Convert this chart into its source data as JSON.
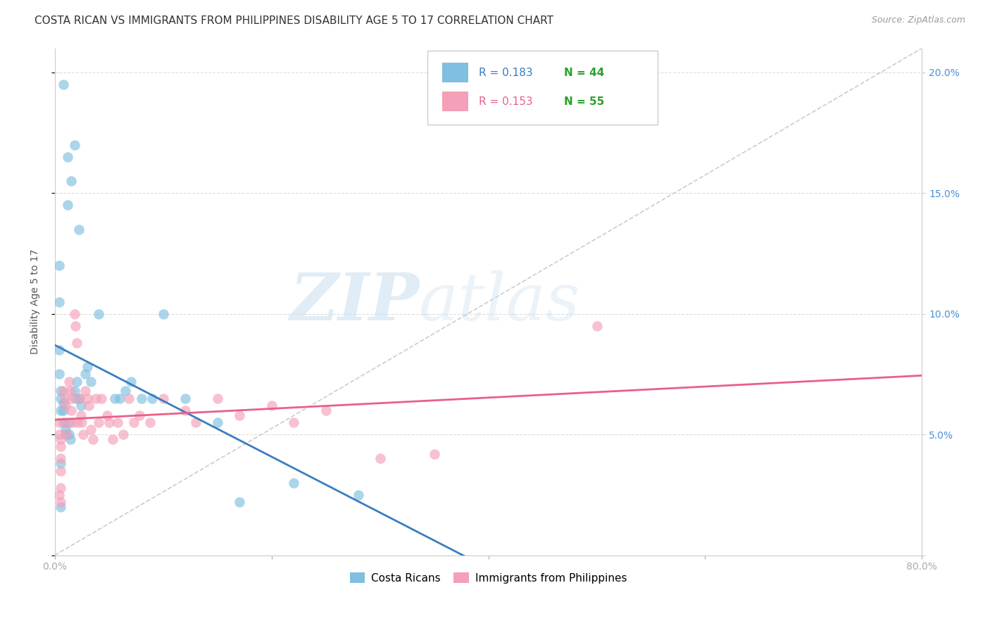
{
  "title": "COSTA RICAN VS IMMIGRANTS FROM PHILIPPINES DISABILITY AGE 5 TO 17 CORRELATION CHART",
  "source": "Source: ZipAtlas.com",
  "ylabel": "Disability Age 5 to 17",
  "xlim": [
    0.0,
    0.8
  ],
  "ylim": [
    0.0,
    0.21
  ],
  "xticks": [
    0.0,
    0.2,
    0.4,
    0.6,
    0.8
  ],
  "xtick_labels": [
    "0.0%",
    "",
    "",
    "",
    "80.0%"
  ],
  "yticks": [
    0.0,
    0.05,
    0.1,
    0.15,
    0.2
  ],
  "legend_blue_R": "0.183",
  "legend_blue_N": "44",
  "legend_pink_R": "0.153",
  "legend_pink_N": "55",
  "blue_scatter_color": "#7fbfdf",
  "pink_scatter_color": "#f4a0b8",
  "blue_line_color": "#3a7dbf",
  "pink_line_color": "#e8608a",
  "diagonal_color": "#cccccc",
  "watermark_zip": "ZIP",
  "watermark_atlas": "atlas",
  "blue_scatter_x": [
    0.008,
    0.012,
    0.018,
    0.015,
    0.022,
    0.012,
    0.004,
    0.004,
    0.004,
    0.004,
    0.005,
    0.005,
    0.005,
    0.008,
    0.008,
    0.008,
    0.01,
    0.01,
    0.013,
    0.013,
    0.014,
    0.018,
    0.019,
    0.02,
    0.022,
    0.024,
    0.028,
    0.03,
    0.033,
    0.04,
    0.055,
    0.06,
    0.065,
    0.07,
    0.08,
    0.09,
    0.1,
    0.12,
    0.15,
    0.17,
    0.22,
    0.28,
    0.005,
    0.005
  ],
  "blue_scatter_y": [
    0.195,
    0.165,
    0.17,
    0.155,
    0.135,
    0.145,
    0.12,
    0.105,
    0.085,
    0.075,
    0.068,
    0.065,
    0.06,
    0.063,
    0.06,
    0.055,
    0.052,
    0.05,
    0.055,
    0.05,
    0.048,
    0.068,
    0.065,
    0.072,
    0.065,
    0.062,
    0.075,
    0.078,
    0.072,
    0.1,
    0.065,
    0.065,
    0.068,
    0.072,
    0.065,
    0.065,
    0.1,
    0.065,
    0.055,
    0.022,
    0.03,
    0.025,
    0.038,
    0.02
  ],
  "pink_scatter_x": [
    0.004,
    0.004,
    0.005,
    0.005,
    0.005,
    0.008,
    0.009,
    0.01,
    0.01,
    0.011,
    0.013,
    0.014,
    0.015,
    0.015,
    0.016,
    0.018,
    0.019,
    0.02,
    0.021,
    0.023,
    0.024,
    0.025,
    0.026,
    0.028,
    0.03,
    0.031,
    0.033,
    0.035,
    0.038,
    0.04,
    0.043,
    0.048,
    0.05,
    0.053,
    0.058,
    0.063,
    0.068,
    0.073,
    0.078,
    0.088,
    0.1,
    0.12,
    0.13,
    0.15,
    0.17,
    0.2,
    0.22,
    0.25,
    0.3,
    0.35,
    0.004,
    0.005,
    0.005,
    0.5,
    0.005
  ],
  "pink_scatter_y": [
    0.055,
    0.05,
    0.048,
    0.045,
    0.04,
    0.068,
    0.065,
    0.062,
    0.055,
    0.05,
    0.072,
    0.068,
    0.065,
    0.06,
    0.055,
    0.1,
    0.095,
    0.088,
    0.055,
    0.065,
    0.058,
    0.055,
    0.05,
    0.068,
    0.065,
    0.062,
    0.052,
    0.048,
    0.065,
    0.055,
    0.065,
    0.058,
    0.055,
    0.048,
    0.055,
    0.05,
    0.065,
    0.055,
    0.058,
    0.055,
    0.065,
    0.06,
    0.055,
    0.065,
    0.058,
    0.062,
    0.055,
    0.06,
    0.04,
    0.042,
    0.025,
    0.028,
    0.022,
    0.095,
    0.035
  ],
  "background_color": "#ffffff",
  "grid_color": "#dddddd",
  "title_fontsize": 11,
  "axis_fontsize": 10,
  "tick_fontsize": 10,
  "right_tick_color": "#4a90d9",
  "left_tick_color": "#555555"
}
